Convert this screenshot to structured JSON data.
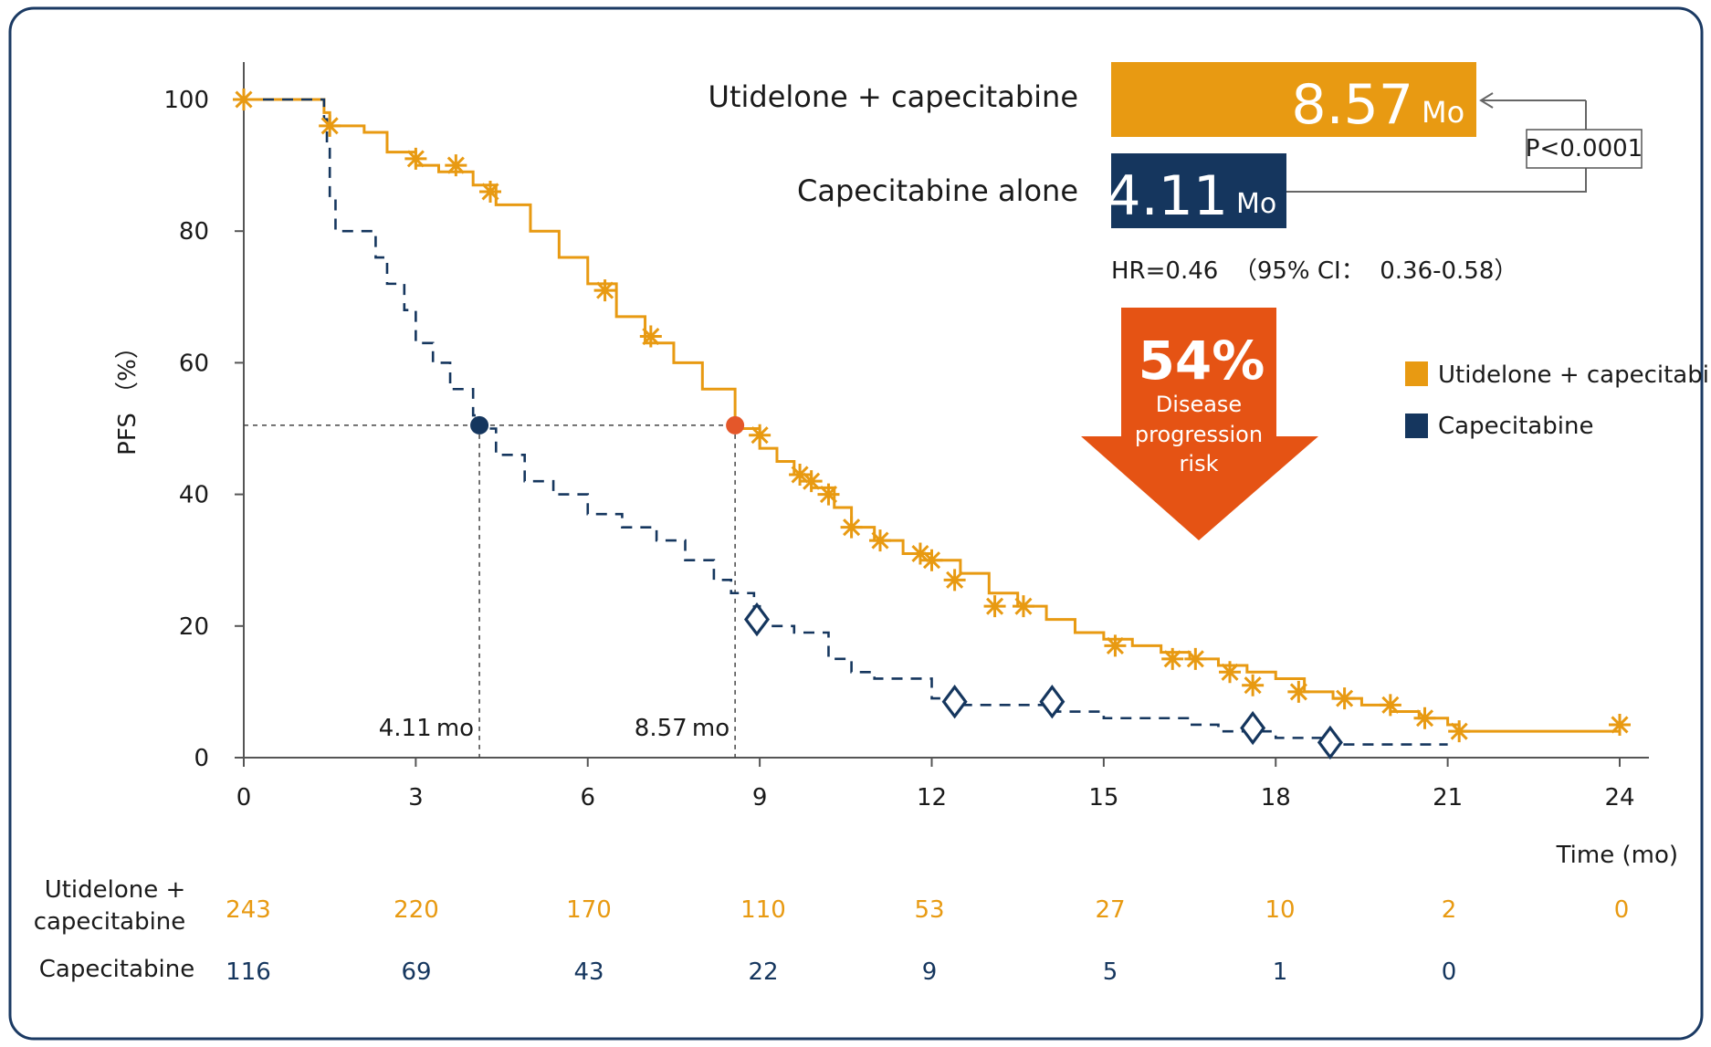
{
  "colors": {
    "utidelone": "#e89a12",
    "capecitabine": "#15365e",
    "arrow": "#e55314",
    "frame": "#1b3a63",
    "median_dot_utidelone": "#e4572a"
  },
  "chart_data": {
    "type": "line",
    "subtype": "kaplan-meier",
    "xlabel": "Time (mo)",
    "ylabel": "PFS （%）",
    "xlim": [
      0,
      24
    ],
    "ylim": [
      0,
      100
    ],
    "xticks": [
      0,
      3,
      6,
      9,
      12,
      15,
      18,
      21,
      24
    ],
    "yticks": [
      0,
      20,
      40,
      60,
      80,
      100
    ],
    "grid": false,
    "legend_position": "right",
    "series": [
      {
        "name": "Utidelone + capecitabine",
        "color": "#e89a12",
        "line_style": "solid",
        "censor_marker": "star",
        "x": [
          0,
          0.8,
          1.4,
          1.5,
          2.1,
          2.5,
          3.0,
          3.4,
          4.0,
          4.4,
          5.0,
          5.5,
          6.0,
          6.5,
          7.0,
          7.5,
          8.0,
          8.57,
          9.0,
          9.3,
          9.6,
          9.9,
          10.3,
          10.6,
          11.0,
          11.5,
          12.0,
          12.5,
          13.0,
          13.5,
          14.0,
          14.5,
          15.0,
          15.5,
          16.0,
          16.5,
          17.0,
          17.5,
          18.0,
          18.5,
          19.0,
          19.5,
          20.0,
          20.5,
          21.0,
          21.2,
          22.0,
          23.0,
          24.0
        ],
        "y": [
          100,
          100,
          98,
          96,
          95,
          92,
          90,
          89,
          87,
          84,
          80,
          76,
          72,
          67,
          63,
          60,
          56,
          50,
          47,
          45,
          43,
          41,
          38,
          35,
          33,
          31,
          30,
          28,
          25,
          23,
          21,
          19,
          18,
          17,
          16,
          15,
          14,
          13,
          12,
          10,
          9,
          8,
          7,
          6,
          5,
          4,
          4,
          4,
          4
        ],
        "censor_x": [
          0,
          1.5,
          3.0,
          3.7,
          4.3,
          6.3,
          7.1,
          9.0,
          9.7,
          9.9,
          10.2,
          10.6,
          11.1,
          11.8,
          12.0,
          12.4,
          13.1,
          13.6,
          15.2,
          16.2,
          16.6,
          17.2,
          17.6,
          18.4,
          19.2,
          20.0,
          20.6,
          21.2,
          24.0
        ],
        "censor_y": [
          100,
          96,
          91,
          90,
          86,
          71,
          64,
          49,
          43,
          42,
          40,
          35,
          33,
          31,
          30,
          27,
          23,
          23,
          17,
          15,
          15,
          13,
          11,
          10,
          9,
          8,
          6,
          4,
          5
        ]
      },
      {
        "name": "Capecitabine",
        "color": "#15365e",
        "line_style": "dashed",
        "censor_marker": "diamond",
        "x": [
          0,
          1.3,
          1.4,
          1.45,
          1.5,
          1.6,
          2.0,
          2.3,
          2.5,
          2.8,
          3.0,
          3.3,
          3.6,
          4.0,
          4.11,
          4.4,
          4.9,
          5.4,
          6.0,
          6.6,
          7.2,
          7.7,
          8.2,
          8.5,
          8.9,
          9.0,
          9.6,
          10.2,
          10.6,
          11.0,
          12.0,
          12.5,
          14.0,
          14.2,
          15.0,
          16.5,
          17.0,
          17.7,
          18.0,
          19.0,
          20.0,
          21.0
        ],
        "y": [
          100,
          100,
          97,
          93,
          85,
          80,
          80,
          76,
          72,
          68,
          63,
          60,
          56,
          52,
          50,
          46,
          42,
          40,
          37,
          35,
          33,
          30,
          27,
          25,
          23,
          20,
          19,
          15,
          13,
          12,
          9,
          8,
          8,
          7,
          6,
          5,
          4,
          4,
          3,
          2,
          2,
          2
        ],
        "censor_x": [
          8.95,
          12.4,
          14.1,
          17.6,
          18.95
        ],
        "censor_y": [
          21,
          8.5,
          8.5,
          4.5,
          2.3
        ]
      }
    ],
    "medians": [
      {
        "label": "8.57 mo",
        "x": 8.57,
        "y": 50.5,
        "series": "Utidelone + capecitabine"
      },
      {
        "label": "4.11 mo",
        "x": 4.11,
        "y": 50.5,
        "series": "Capecitabine"
      }
    ],
    "summary_bars": [
      {
        "label": "Utidelone + capecitabine",
        "value_text": "8.57",
        "unit": "Mo",
        "value": 8.57
      },
      {
        "label": "Capecitabine alone",
        "value_text": "4.11",
        "unit": "Mo",
        "value": 4.11
      }
    ],
    "p_value": "P<0.0001",
    "hr_text": "HR=0.46  （95% CI：  0.36-0.58）",
    "risk_reduction": {
      "percent": "54%",
      "line1": "Disease",
      "line2": "progression",
      "line3": "risk"
    },
    "risk_table": {
      "rows": [
        {
          "label_line1": "Utidelone +",
          "label_line2": "capecitabine",
          "values": [
            243,
            220,
            170,
            110,
            53,
            27,
            10,
            2,
            0
          ]
        },
        {
          "label_line1": "Capecitabine",
          "label_line2": "",
          "values": [
            116,
            69,
            43,
            22,
            9,
            5,
            1,
            0
          ]
        }
      ]
    }
  }
}
